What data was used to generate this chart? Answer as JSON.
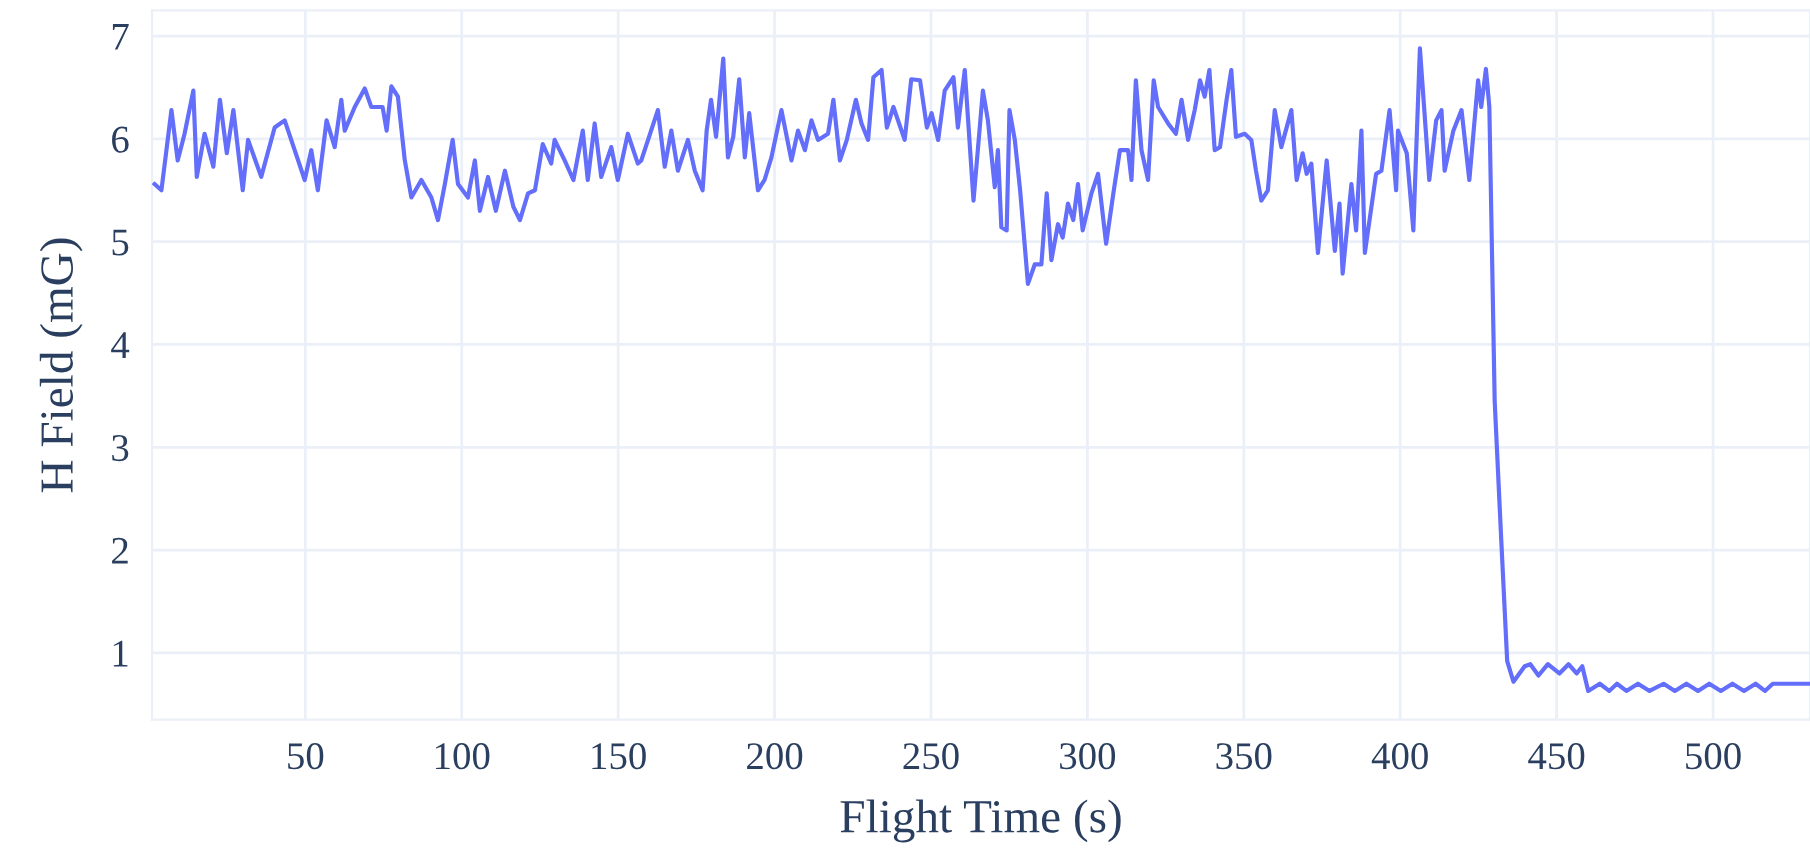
{
  "chart_data": {
    "type": "line",
    "xlabel": "Flight Time (s)",
    "ylabel": "H Field (mG)",
    "xlim": [
      1,
      531
    ],
    "ylim": [
      0.35,
      7.25
    ],
    "xticks": [
      50,
      100,
      150,
      200,
      250,
      300,
      350,
      400,
      450,
      500
    ],
    "yticks": [
      1,
      2,
      3,
      4,
      5,
      6,
      7
    ],
    "grid": true,
    "marker": "none",
    "line_style": "solid",
    "series": [
      {
        "color": "#636efa",
        "x": [
          1.8,
          4,
          7.2,
          9.2,
          11.4,
          14.2,
          15.3,
          17.8,
          20.6,
          22.7,
          24.9,
          27,
          30,
          31.7,
          35.9,
          40.2,
          43.4,
          46.6,
          49.8,
          51.9,
          54,
          56.8,
          59.4,
          61.5,
          62.6,
          65.8,
          69,
          71.1,
          74.7,
          76,
          77.5,
          79.6,
          81.8,
          83.9,
          87.1,
          90.3,
          92.4,
          94.6,
          97.1,
          98.8,
          102,
          104.2,
          105.8,
          108.4,
          110.9,
          113.8,
          116.5,
          118.6,
          121.2,
          123.4,
          125.9,
          128.6,
          129.7,
          132.9,
          135.7,
          138.7,
          140.3,
          142.5,
          144.6,
          147.8,
          149.9,
          153.1,
          156.3,
          157.4,
          162.7,
          164.9,
          167,
          169.1,
          172.3,
          174.5,
          177,
          178.3,
          179.7,
          181.3,
          183.6,
          185.1,
          186.8,
          188.7,
          190.5,
          191.9,
          194.7,
          196.8,
          199,
          202.2,
          205.4,
          207.5,
          209.7,
          211.8,
          213.9,
          217.1,
          218.8,
          220.9,
          223.1,
          226,
          227.8,
          229.9,
          231.6,
          234.2,
          235.9,
          238,
          241.6,
          243.7,
          246.5,
          248.7,
          250.2,
          252.3,
          254.4,
          257.2,
          258.6,
          260.8,
          263.6,
          266.6,
          268.2,
          270.4,
          271.4,
          272.5,
          274.2,
          275.1,
          276.8,
          278.5,
          281,
          283.2,
          285.3,
          287,
          288.5,
          290.6,
          292.1,
          293.8,
          295.5,
          297,
          298.5,
          301.3,
          303.4,
          306,
          308.3,
          310.4,
          313,
          314.1,
          315.5,
          317.3,
          319.4,
          321.2,
          322.6,
          325.8,
          328.3,
          330.1,
          332.2,
          334.3,
          336,
          337.5,
          339,
          340.7,
          342.4,
          344.5,
          346,
          347.5,
          350.3,
          352.4,
          353.9,
          355.6,
          357.7,
          359.9,
          362,
          365.2,
          366.9,
          368.8,
          370.1,
          371.6,
          373.7,
          376.5,
          379.1,
          380.6,
          381.6,
          384.4,
          385.9,
          387.6,
          388.7,
          392.3,
          394,
          396.6,
          398.7,
          399.3,
          402.1,
          404.2,
          406.3,
          409.3,
          411.5,
          413.2,
          414.2,
          417,
          419.6,
          422.1,
          424.9,
          425.9,
          427.4,
          428.5,
          430.2,
          432.3,
          434.2,
          436.2,
          439.8,
          441.6,
          444.2,
          447.2,
          450.9,
          453.8,
          456.4,
          458.2,
          460.1,
          463.8,
          466.8,
          469.3,
          472.3,
          476,
          479.7,
          484.2,
          487.8,
          491.5,
          495.2,
          498.8,
          502.5,
          506.2,
          509.9,
          513.6,
          516.6,
          519.1,
          531
        ],
        "values": [
          5.56,
          5.5,
          6.28,
          5.79,
          6.05,
          6.47,
          5.63,
          6.05,
          5.73,
          6.38,
          5.86,
          6.28,
          5.5,
          5.99,
          5.63,
          6.11,
          6.18,
          5.89,
          5.6,
          5.89,
          5.5,
          6.18,
          5.92,
          6.38,
          6.08,
          6.31,
          6.49,
          6.31,
          6.31,
          6.08,
          6.51,
          6.41,
          5.79,
          5.43,
          5.6,
          5.43,
          5.21,
          5.56,
          5.99,
          5.56,
          5.43,
          5.79,
          5.3,
          5.63,
          5.3,
          5.69,
          5.34,
          5.21,
          5.47,
          5.5,
          5.95,
          5.76,
          5.99,
          5.79,
          5.6,
          6.08,
          5.6,
          6.15,
          5.63,
          5.92,
          5.6,
          6.05,
          5.76,
          5.79,
          6.28,
          5.73,
          6.08,
          5.69,
          5.99,
          5.69,
          5.5,
          6.08,
          6.38,
          6.02,
          6.78,
          5.82,
          6.02,
          6.58,
          5.82,
          6.25,
          5.5,
          5.6,
          5.82,
          6.28,
          5.79,
          6.08,
          5.89,
          6.18,
          5.99,
          6.05,
          6.38,
          5.79,
          5.99,
          6.38,
          6.15,
          5.99,
          6.6,
          6.67,
          6.11,
          6.31,
          5.99,
          6.58,
          6.57,
          6.11,
          6.25,
          5.99,
          6.47,
          6.6,
          6.11,
          6.67,
          5.4,
          6.47,
          6.18,
          5.53,
          5.89,
          5.14,
          5.11,
          6.28,
          5.99,
          5.5,
          4.59,
          4.78,
          4.78,
          5.47,
          4.82,
          5.17,
          5.04,
          5.37,
          5.21,
          5.56,
          5.11,
          5.47,
          5.66,
          4.98,
          5.47,
          5.89,
          5.89,
          5.6,
          6.57,
          5.89,
          5.6,
          6.57,
          6.31,
          6.15,
          6.05,
          6.38,
          5.99,
          6.28,
          6.57,
          6.41,
          6.67,
          5.89,
          5.92,
          6.38,
          6.67,
          6.02,
          6.05,
          5.99,
          5.69,
          5.4,
          5.5,
          6.28,
          5.92,
          6.28,
          5.6,
          5.86,
          5.66,
          5.76,
          4.89,
          5.79,
          4.91,
          5.37,
          4.69,
          5.56,
          5.11,
          6.08,
          4.89,
          5.66,
          5.69,
          6.28,
          5.5,
          6.08,
          5.86,
          5.11,
          6.88,
          5.6,
          6.18,
          6.28,
          5.69,
          6.08,
          6.28,
          5.6,
          6.57,
          6.31,
          6.68,
          6.31,
          3.45,
          2.1,
          0.92,
          0.72,
          0.87,
          0.89,
          0.78,
          0.89,
          0.8,
          0.89,
          0.8,
          0.87,
          0.63,
          0.7,
          0.63,
          0.7,
          0.63,
          0.7,
          0.63,
          0.7,
          0.63,
          0.7,
          0.63,
          0.7,
          0.63,
          0.7,
          0.63,
          0.7,
          0.63,
          0.7,
          0.7
        ]
      }
    ]
  }
}
